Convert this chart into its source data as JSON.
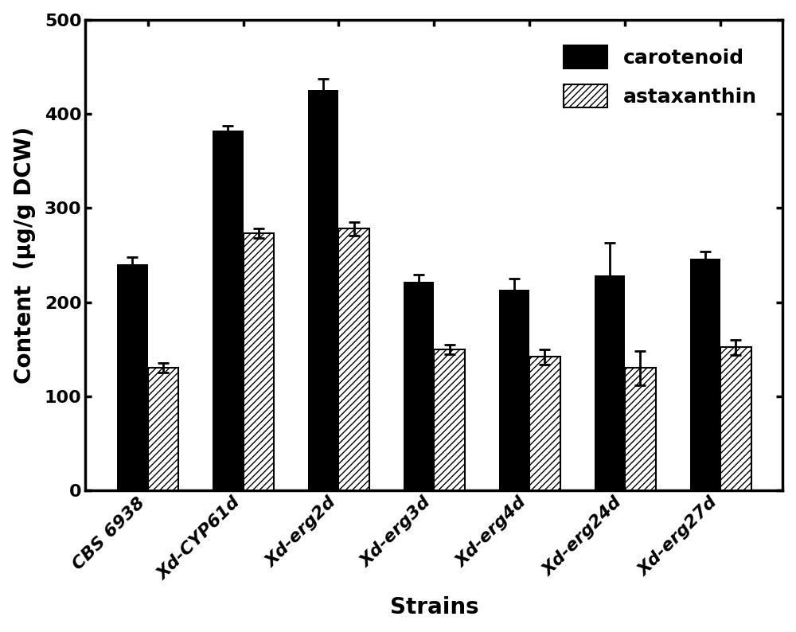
{
  "strains": [
    "CBS 6938",
    "Xd-CYP61d",
    "Xd-erg2d",
    "Xd-erg3d",
    "Xd-erg4d",
    "Xd-erg24d",
    "Xd-erg27d"
  ],
  "carotenoid": [
    240,
    382,
    425,
    222,
    213,
    228,
    246
  ],
  "carotenoid_err": [
    8,
    5,
    12,
    7,
    12,
    35,
    8
  ],
  "astaxanthin": [
    130,
    273,
    278,
    150,
    142,
    130,
    152
  ],
  "astaxanthin_err": [
    5,
    5,
    7,
    5,
    8,
    18,
    8
  ],
  "ylabel": "Content  (μg/g DCW)",
  "xlabel": "Strains",
  "ylim": [
    0,
    500
  ],
  "yticks": [
    0,
    100,
    200,
    300,
    400,
    500
  ],
  "bar_width": 0.32,
  "carotenoid_color": "#000000",
  "astaxanthin_hatch": "////",
  "legend_carotenoid": "carotenoid",
  "legend_astaxanthin": "astaxanthin",
  "figsize": [
    10.0,
    7.94
  ],
  "dpi": 100,
  "label_fontsize": 20,
  "tick_fontsize": 16,
  "legend_fontsize": 18
}
